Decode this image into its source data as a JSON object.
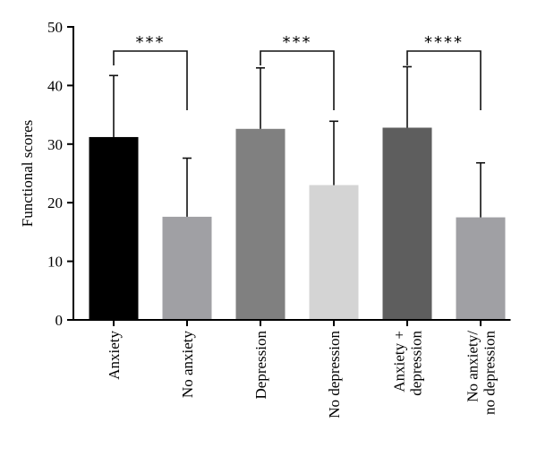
{
  "chart_data": {
    "type": "bar",
    "categories": [
      [
        "Anxiety"
      ],
      [
        "No anxiety"
      ],
      [
        "Depression"
      ],
      [
        "No depression"
      ],
      [
        "Anxiety +",
        "depression"
      ],
      [
        "No anxiety/",
        "no depression"
      ]
    ],
    "values": [
      31.2,
      17.6,
      32.6,
      23.0,
      32.8,
      17.5
    ],
    "errors": [
      10.5,
      10.0,
      10.4,
      10.9,
      10.4,
      9.3
    ],
    "colors": [
      "#000000",
      "#a0a0a4",
      "#808080",
      "#d4d4d4",
      "#5e5e5e",
      "#a0a0a4"
    ],
    "ylabel": "Functional scores",
    "ylim": [
      0,
      50
    ],
    "yticks": [
      0,
      10,
      20,
      30,
      40,
      50
    ],
    "significance": [
      {
        "from": 0,
        "to": 1,
        "label": "***"
      },
      {
        "from": 2,
        "to": 3,
        "label": "***"
      },
      {
        "from": 4,
        "to": 5,
        "label": "****"
      }
    ],
    "grid": false,
    "legend": "none"
  }
}
